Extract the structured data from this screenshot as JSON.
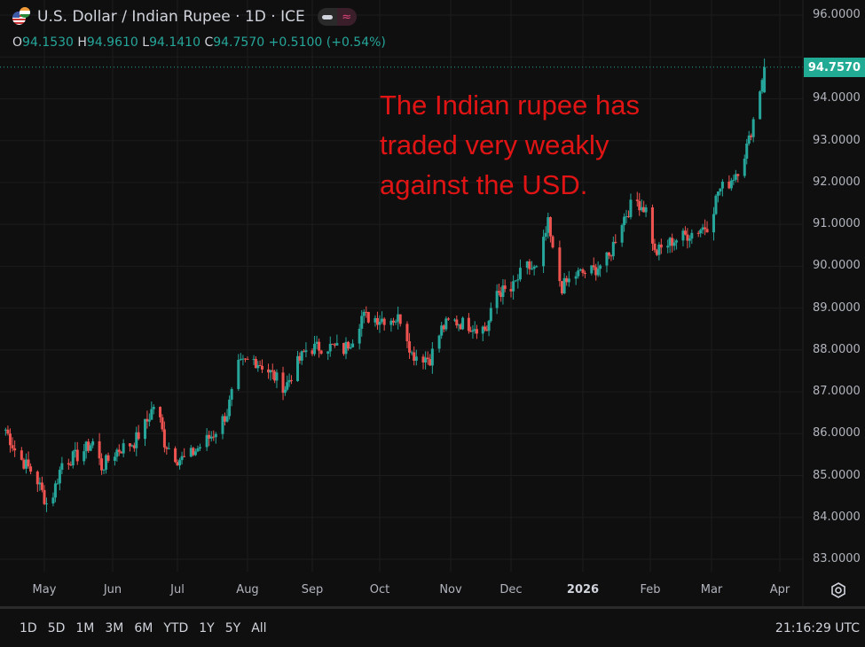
{
  "header": {
    "title": "U.S. Dollar / Indian Rupee · 1D · ICE",
    "icons": [
      "us-flag-icon",
      "india-flag-icon",
      "minus-icon",
      "wave-icon"
    ],
    "ohlc": {
      "o_label": "O",
      "o": "94.1530",
      "h_label": "H",
      "h": "94.9610",
      "l_label": "L",
      "l": "94.1410",
      "c_label": "C",
      "c": "94.7570",
      "change": "+0.5100 (+0.54%)"
    }
  },
  "annotation": [
    "The Indian rupee has",
    "traded very weakly",
    "against the USD."
  ],
  "last_price": "94.7570",
  "colors": {
    "up": "#26a69a",
    "down": "#ef5350",
    "background": "#0f0f0f",
    "annotation": "#e01414",
    "price_tag": "#22ab94"
  },
  "chart_data": {
    "type": "candlestick",
    "title": "U.S. Dollar / Indian Rupee · 1D · ICE",
    "ylim": [
      83,
      96
    ],
    "y_ticks": [
      "96.0000",
      "95.0000",
      "94.0000",
      "93.0000",
      "92.0000",
      "91.0000",
      "90.0000",
      "89.0000",
      "88.0000",
      "87.0000",
      "86.0000",
      "85.0000",
      "84.0000",
      "83.0000"
    ],
    "x_ticks": [
      "May",
      "Jun",
      "Jul",
      "Aug",
      "Sep",
      "Oct",
      "Nov",
      "Dec",
      "2026",
      "Feb",
      "Mar",
      "Apr"
    ],
    "grid": true,
    "last_candle": {
      "open": 94.153,
      "high": 94.961,
      "low": 94.141,
      "close": 94.757
    },
    "close_path": [
      [
        "2025-04-14",
        86.1
      ],
      [
        "2025-04-19",
        85.5
      ],
      [
        "2025-04-27",
        85.0
      ],
      [
        "2025-05-03",
        84.2
      ],
      [
        "2025-05-09",
        85.3
      ],
      [
        "2025-05-17",
        85.5
      ],
      [
        "2025-05-23",
        85.8
      ],
      [
        "2025-05-27",
        85.2
      ],
      [
        "2025-06-03",
        85.6
      ],
      [
        "2025-06-11",
        85.8
      ],
      [
        "2025-06-17",
        86.3
      ],
      [
        "2025-06-21",
        86.8
      ],
      [
        "2025-06-25",
        85.8
      ],
      [
        "2025-07-01",
        85.4
      ],
      [
        "2025-07-05",
        85.4
      ],
      [
        "2025-07-11",
        85.7
      ],
      [
        "2025-07-17",
        86.0
      ],
      [
        "2025-07-23",
        86.5
      ],
      [
        "2025-07-28",
        87.6
      ],
      [
        "2025-08-03",
        87.8
      ],
      [
        "2025-08-09",
        87.6
      ],
      [
        "2025-08-15",
        87.3
      ],
      [
        "2025-08-19",
        87.1
      ],
      [
        "2025-08-24",
        87.6
      ],
      [
        "2025-08-29",
        88.0
      ],
      [
        "2025-09-07",
        88.1
      ],
      [
        "2025-09-15",
        88.0
      ],
      [
        "2025-09-19",
        88.3
      ],
      [
        "2025-09-23",
        88.8
      ],
      [
        "2025-10-01",
        88.75
      ],
      [
        "2025-10-11",
        88.75
      ],
      [
        "2025-10-15",
        87.9
      ],
      [
        "2025-10-23",
        87.8
      ],
      [
        "2025-10-28",
        88.5
      ],
      [
        "2025-11-01",
        88.7
      ],
      [
        "2025-11-10",
        88.6
      ],
      [
        "2025-11-19",
        88.5
      ],
      [
        "2025-11-24",
        89.4
      ],
      [
        "2025-12-01",
        89.4
      ],
      [
        "2025-12-07",
        90.0
      ],
      [
        "2025-12-12",
        89.9
      ],
      [
        "2025-12-17",
        91.0
      ],
      [
        "2025-12-20",
        90.0
      ],
      [
        "2025-12-23",
        89.5
      ],
      [
        "2025-12-29",
        89.8
      ],
      [
        "2026-01-06",
        89.9
      ],
      [
        "2026-01-13",
        90.2
      ],
      [
        "2026-01-18",
        91.0
      ],
      [
        "2026-01-25",
        91.6
      ],
      [
        "2026-01-31",
        91.3
      ],
      [
        "2026-02-03",
        90.3
      ],
      [
        "2026-02-11",
        90.6
      ],
      [
        "2026-02-20",
        90.8
      ],
      [
        "2026-02-28",
        91.0
      ],
      [
        "2026-03-04",
        91.8
      ],
      [
        "2026-03-09",
        92.0
      ],
      [
        "2026-03-14",
        92.4
      ],
      [
        "2026-03-18",
        93.0
      ],
      [
        "2026-03-22",
        94.0
      ],
      [
        "2026-03-25",
        94.757
      ]
    ]
  },
  "range_buttons": [
    "1D",
    "5D",
    "1M",
    "3M",
    "6M",
    "YTD",
    "1Y",
    "5Y",
    "All"
  ],
  "clock": "21:16:29 UTC"
}
